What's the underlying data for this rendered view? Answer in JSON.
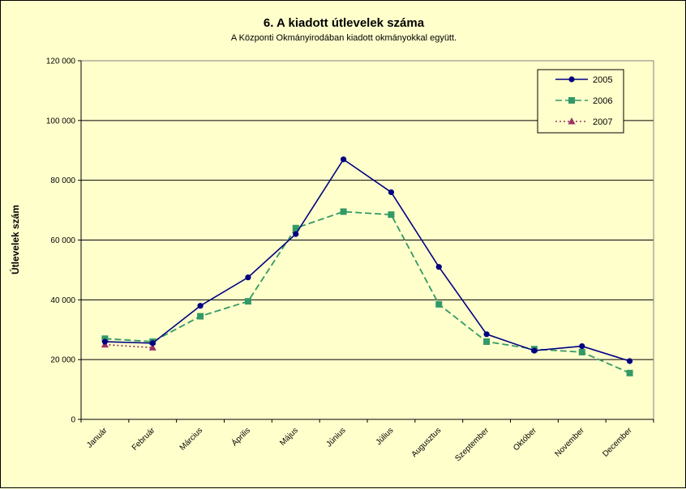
{
  "chart_data": {
    "type": "line",
    "title": "6. A  kiadott útlevelek száma",
    "subtitle": "A Központi Okmányirodában kiadott okmányokkal együtt.",
    "ylabel": "Útlevelek szám",
    "xlabel": "",
    "ylim": [
      0,
      120000
    ],
    "yticks": [
      0,
      20000,
      40000,
      60000,
      80000,
      100000,
      120000
    ],
    "ytick_labels": [
      "0",
      "20 000",
      "40 000",
      "60 000",
      "80 000",
      "100 000",
      "120 000"
    ],
    "grid": true,
    "legend_position": "top-right",
    "categories": [
      "Január",
      "Február",
      "Március",
      "Április",
      "Május",
      "Június",
      "Július",
      "Augusztus",
      "Szeptember",
      "Október",
      "November",
      "December"
    ],
    "series": [
      {
        "name": "2005",
        "color": "#000080",
        "marker": "circle",
        "dash": "solid",
        "values": [
          26000,
          25500,
          38000,
          47500,
          62000,
          87000,
          76000,
          51000,
          28500,
          23000,
          24500,
          19500
        ]
      },
      {
        "name": "2006",
        "color": "#339966",
        "marker": "square",
        "dash": "dashed",
        "values": [
          27000,
          26000,
          34500,
          39500,
          64000,
          69500,
          68500,
          38500,
          26000,
          23500,
          22500,
          15500
        ]
      },
      {
        "name": "2007",
        "color": "#993366",
        "marker": "triangle",
        "dash": "dotted",
        "values": [
          25000,
          24000,
          null,
          null,
          null,
          null,
          null,
          null,
          null,
          null,
          null,
          null
        ]
      }
    ]
  }
}
